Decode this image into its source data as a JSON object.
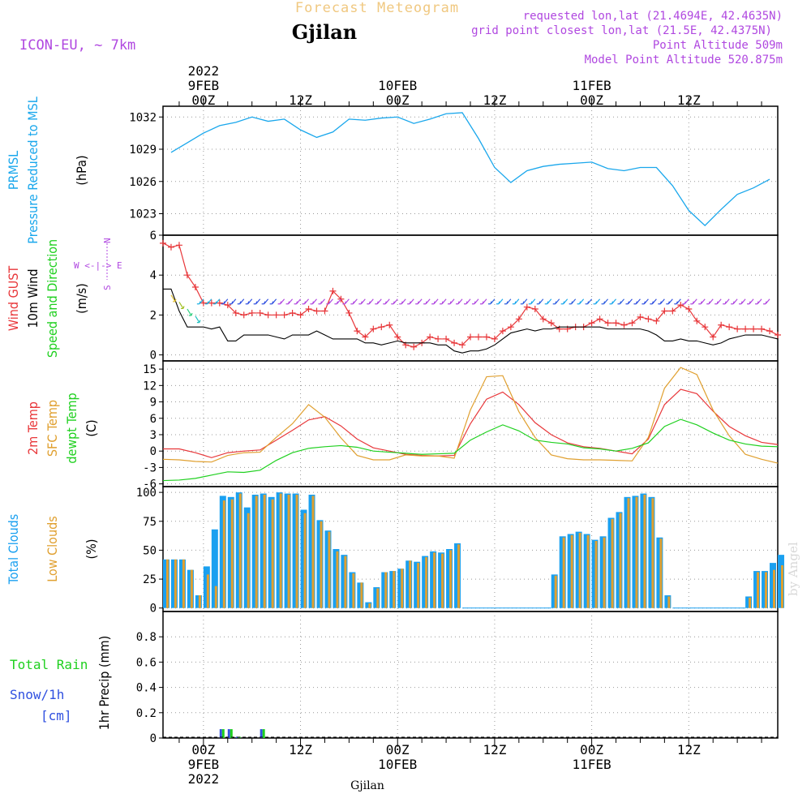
{
  "header": {
    "product": "Forecast Meteogram",
    "station": "Gjilan",
    "model": "ICON-EU, ~ 7km",
    "requested": "requested lon,lat (21.4694E, 42.4635N)",
    "gridpoint": "grid point closest lon,lat (21.5E, 42.4375N)",
    "altitude": "Point Altitude 509m",
    "model_altitude": "Model Point Altitude 520.875m",
    "credit": "by Angel",
    "footer_station": "Gjilan"
  },
  "time_axis": {
    "top_year": "2022",
    "ticks": [
      {
        "hour": 0,
        "day": "9FEB",
        "z": "00Z"
      },
      {
        "hour": 12,
        "day": "",
        "z": "12Z"
      },
      {
        "hour": 24,
        "day": "10FEB",
        "z": "00Z"
      },
      {
        "hour": 36,
        "day": "",
        "z": "12Z"
      },
      {
        "hour": 48,
        "day": "11FEB",
        "z": "00Z"
      },
      {
        "hour": 60,
        "day": "",
        "z": "12Z"
      }
    ],
    "range_hours": [
      -5,
      71
    ]
  },
  "panels": {
    "pressure": {
      "label_lines": [
        "PRMSL",
        "Pressure Reduced to MSL"
      ],
      "unit": "(hPa)",
      "ticks": [
        "1032",
        "1029",
        "1026",
        "1023"
      ]
    },
    "wind": {
      "gust_label": "Wind GUST",
      "wind_label": "10m Wind",
      "speed_label": "Speed and Direction",
      "unit": "(m/s)",
      "ticks": [
        "6",
        "4",
        "2",
        "0"
      ],
      "compass_n": "N",
      "compass_s": "S",
      "compass_we": "W <-|-> E"
    },
    "temperature": {
      "t2m_label": "2m Temp",
      "sfc_label": "SFC Temp",
      "dew_label": "dewpt Temp",
      "unit": "(C)",
      "ticks": [
        "15",
        "12",
        "9",
        "6",
        "3",
        "0",
        "-3",
        "-6"
      ]
    },
    "clouds": {
      "total_label": "Total Clouds",
      "low_label": "Low Clouds",
      "unit": "(%)",
      "ticks": [
        "100",
        "75",
        "50",
        "25",
        "0"
      ]
    },
    "precip": {
      "rain_label": "Total  Rain",
      "snow_label": "Snow/1h",
      "snow_unit": "[cm]",
      "axis_label": "1hr Precip (mm)",
      "ticks": [
        "0.8",
        "0.6",
        "0.4",
        "0.2",
        "0"
      ]
    }
  },
  "colors": {
    "pressure": "#1aa7ec",
    "gust": "#e8373a",
    "wind": "#000000",
    "t2m": "#e8373a",
    "sfc": "#e0a030",
    "dew": "#1fd01f",
    "total_clouds": "#1aa0f0",
    "low_clouds": "#e0a030",
    "rain": "#1fd01f",
    "snow": "#3050e0",
    "purple": "#b048e0",
    "header_orange": "#f0c880"
  },
  "chart_data": [
    {
      "type": "line",
      "title": "PRMSL Pressure Reduced to MSL",
      "ylabel": "(hPa)",
      "ylim": [
        1021,
        1033
      ],
      "x": [
        -4,
        -2,
        0,
        2,
        4,
        6,
        8,
        10,
        12,
        14,
        16,
        18,
        20,
        22,
        24,
        26,
        28,
        30,
        32,
        34,
        36,
        38,
        40,
        42,
        44,
        46,
        48,
        50,
        52,
        54,
        56,
        58,
        60,
        62,
        64,
        66,
        68,
        70
      ],
      "series": [
        {
          "name": "PRMSL",
          "values": [
            1028.7,
            1029.6,
            1030.5,
            1031.2,
            1031.5,
            1032.0,
            1031.6,
            1031.8,
            1030.8,
            1030.1,
            1030.6,
            1031.8,
            1031.7,
            1031.9,
            1032.0,
            1031.4,
            1031.8,
            1032.3,
            1032.4,
            1030.0,
            1027.3,
            1025.9,
            1027.0,
            1027.4,
            1027.6,
            1027.7,
            1027.8,
            1027.2,
            1027.0,
            1027.3,
            1027.3,
            1025.6,
            1023.3,
            1021.9,
            1023.4,
            1024.8,
            1025.4,
            1026.2
          ]
        }
      ]
    },
    {
      "type": "line",
      "title": "Wind",
      "ylabel": "(m/s)",
      "ylim": [
        -0.3,
        6
      ],
      "x": [
        -5,
        -4,
        -3,
        -2,
        -1,
        0,
        1,
        2,
        3,
        4,
        5,
        6,
        7,
        8,
        9,
        10,
        11,
        12,
        13,
        14,
        15,
        16,
        17,
        18,
        19,
        20,
        21,
        22,
        23,
        24,
        25,
        26,
        27,
        28,
        29,
        30,
        31,
        32,
        33,
        34,
        35,
        36,
        37,
        38,
        39,
        40,
        41,
        42,
        43,
        44,
        45,
        46,
        47,
        48,
        49,
        50,
        51,
        52,
        53,
        54,
        55,
        56,
        57,
        58,
        59,
        60,
        61,
        62,
        63,
        64,
        65,
        66,
        67,
        68,
        69,
        70,
        71
      ],
      "series": [
        {
          "name": "Wind GUST",
          "values": [
            5.6,
            5.4,
            5.5,
            4.0,
            3.4,
            2.6,
            2.6,
            2.6,
            2.5,
            2.1,
            2.0,
            2.1,
            2.1,
            2.0,
            2.0,
            2.0,
            2.1,
            2.0,
            2.3,
            2.2,
            2.2,
            3.2,
            2.8,
            2.1,
            1.2,
            0.9,
            1.3,
            1.4,
            1.5,
            0.9,
            0.5,
            0.4,
            0.6,
            0.9,
            0.8,
            0.8,
            0.6,
            0.5,
            0.9,
            0.9,
            0.9,
            0.8,
            1.2,
            1.4,
            1.8,
            2.4,
            2.3,
            1.8,
            1.6,
            1.3,
            1.3,
            1.4,
            1.4,
            1.6,
            1.8,
            1.6,
            1.6,
            1.5,
            1.6,
            1.9,
            1.8,
            1.7,
            2.2,
            2.2,
            2.5,
            2.3,
            1.7,
            1.4,
            0.9,
            1.5,
            1.4,
            1.3,
            1.3,
            1.3,
            1.3,
            1.2,
            1.0
          ]
        },
        {
          "name": "10m Wind",
          "values": [
            3.3,
            3.3,
            2.2,
            1.4,
            1.4,
            1.4,
            1.3,
            1.4,
            0.7,
            0.7,
            1.0,
            1.0,
            1.0,
            1.0,
            0.9,
            0.8,
            1.0,
            1.0,
            1.0,
            1.2,
            1.0,
            0.8,
            0.8,
            0.8,
            0.8,
            0.6,
            0.6,
            0.5,
            0.6,
            0.7,
            0.6,
            0.6,
            0.6,
            0.6,
            0.5,
            0.5,
            0.2,
            0.1,
            0.2,
            0.2,
            0.3,
            0.5,
            0.8,
            1.1,
            1.2,
            1.3,
            1.2,
            1.3,
            1.3,
            1.4,
            1.4,
            1.4,
            1.4,
            1.4,
            1.4,
            1.3,
            1.3,
            1.3,
            1.3,
            1.3,
            1.2,
            1.0,
            0.7,
            0.7,
            0.8,
            0.7,
            0.7,
            0.6,
            0.5,
            0.6,
            0.8,
            0.9,
            1.0,
            1.0,
            1.0,
            0.9,
            0.8
          ]
        }
      ]
    },
    {
      "type": "line",
      "title": "Temperature",
      "ylabel": "(C)",
      "ylim": [
        -6.5,
        16.5
      ],
      "x": [
        -5,
        -3,
        -1,
        1,
        3,
        5,
        7,
        9,
        11,
        13,
        15,
        17,
        19,
        21,
        23,
        25,
        27,
        29,
        31,
        33,
        35,
        37,
        39,
        41,
        43,
        45,
        47,
        49,
        51,
        53,
        55,
        57,
        59,
        61,
        63,
        65,
        67,
        69,
        71
      ],
      "series": [
        {
          "name": "2m Temp",
          "values": [
            0.4,
            0.4,
            -0.3,
            -1.2,
            -0.3,
            0.0,
            0.2,
            2.0,
            3.8,
            5.7,
            6.3,
            4.6,
            2.2,
            0.6,
            0.0,
            -0.6,
            -0.8,
            -0.9,
            -0.8,
            5.0,
            9.5,
            10.8,
            8.5,
            5.2,
            3.0,
            1.5,
            0.8,
            0.5,
            0.0,
            -0.5,
            2.2,
            8.5,
            11.3,
            10.5,
            7.3,
            4.5,
            2.8,
            1.6,
            1.2
          ]
        },
        {
          "name": "SFC Temp",
          "values": [
            -1.5,
            -1.6,
            -1.9,
            -2.0,
            -0.8,
            -0.3,
            -0.2,
            2.5,
            5.0,
            8.5,
            6.2,
            2.4,
            -0.8,
            -1.6,
            -1.6,
            -0.7,
            -0.9,
            -0.9,
            -1.3,
            7.5,
            13.6,
            13.8,
            7.2,
            2.5,
            -0.7,
            -1.4,
            -1.6,
            -1.6,
            -1.7,
            -1.8,
            2.5,
            11.5,
            15.3,
            14.0,
            7.5,
            2.8,
            -0.6,
            -1.5,
            -2.2
          ]
        },
        {
          "name": "dewpt Temp",
          "values": [
            -5.4,
            -5.3,
            -5.0,
            -4.4,
            -3.8,
            -3.9,
            -3.5,
            -1.7,
            -0.3,
            0.5,
            0.8,
            1.0,
            0.7,
            0.0,
            -0.2,
            -0.4,
            -0.6,
            -0.5,
            -0.4,
            2.0,
            3.5,
            4.8,
            3.7,
            2.0,
            1.6,
            1.3,
            0.6,
            0.4,
            0.0,
            0.5,
            1.5,
            4.5,
            5.8,
            4.8,
            3.3,
            2.0,
            1.3,
            0.9,
            0.8
          ]
        }
      ]
    },
    {
      "type": "bar",
      "title": "Clouds",
      "ylabel": "(%)",
      "ylim": [
        -3,
        105
      ],
      "x": [
        -5,
        -4,
        -3,
        -2,
        -1,
        0,
        1,
        2,
        3,
        4,
        5,
        6,
        7,
        8,
        9,
        10,
        11,
        12,
        13,
        14,
        15,
        16,
        17,
        18,
        19,
        20,
        21,
        22,
        23,
        24,
        25,
        26,
        27,
        28,
        29,
        30,
        31,
        32,
        33,
        34,
        35,
        36,
        37,
        38,
        39,
        40,
        41,
        42,
        43,
        44,
        45,
        46,
        47,
        48,
        49,
        50,
        51,
        52,
        53,
        54,
        55,
        56,
        57,
        58,
        59,
        60,
        61,
        62,
        63,
        64,
        65,
        66,
        67,
        68,
        69,
        70,
        71
      ],
      "series": [
        {
          "name": "Total Clouds",
          "values": [
            42,
            42,
            42,
            33,
            11,
            36,
            68,
            97,
            96,
            100,
            87,
            98,
            99,
            96,
            100,
            99,
            99,
            85,
            98,
            76,
            67,
            51,
            46,
            31,
            22,
            5,
            18,
            31,
            32,
            34,
            41,
            40,
            45,
            49,
            48,
            51,
            56,
            0,
            0,
            0,
            0,
            0,
            0,
            0,
            0,
            0,
            0,
            0,
            29,
            62,
            64,
            66,
            64,
            59,
            62,
            78,
            83,
            96,
            97,
            99,
            96,
            61,
            11,
            0,
            0,
            0,
            0,
            0,
            0,
            0,
            0,
            0,
            10,
            32,
            32,
            39,
            46
          ]
        },
        {
          "name": "Low Clouds",
          "values": [
            42,
            42,
            42,
            33,
            11,
            29,
            19,
            93,
            94,
            99,
            82,
            97,
            98,
            94,
            99,
            98,
            98,
            82,
            97,
            75,
            66,
            49,
            45,
            30,
            22,
            4,
            17,
            31,
            32,
            34,
            41,
            39,
            44,
            48,
            47,
            50,
            55,
            0,
            0,
            0,
            0,
            0,
            0,
            0,
            0,
            0,
            0,
            0,
            28,
            61,
            63,
            65,
            63,
            58,
            61,
            77,
            82,
            95,
            96,
            98,
            95,
            60,
            10,
            0,
            0,
            0,
            0,
            0,
            0,
            0,
            0,
            0,
            9,
            31,
            31,
            33,
            37
          ]
        }
      ]
    },
    {
      "type": "bar",
      "title": "1hr Precip",
      "ylabel": "1hr Precip (mm)",
      "ylim": [
        0,
        1.0
      ],
      "x": [
        2,
        3,
        4,
        7
      ],
      "series": [
        {
          "name": "Total Rain",
          "values": [
            0.07,
            0.07,
            0.01,
            0.07
          ]
        },
        {
          "name": "Snow/1h",
          "values": [
            0.07,
            0.07,
            0.01,
            0.07
          ]
        }
      ]
    }
  ]
}
